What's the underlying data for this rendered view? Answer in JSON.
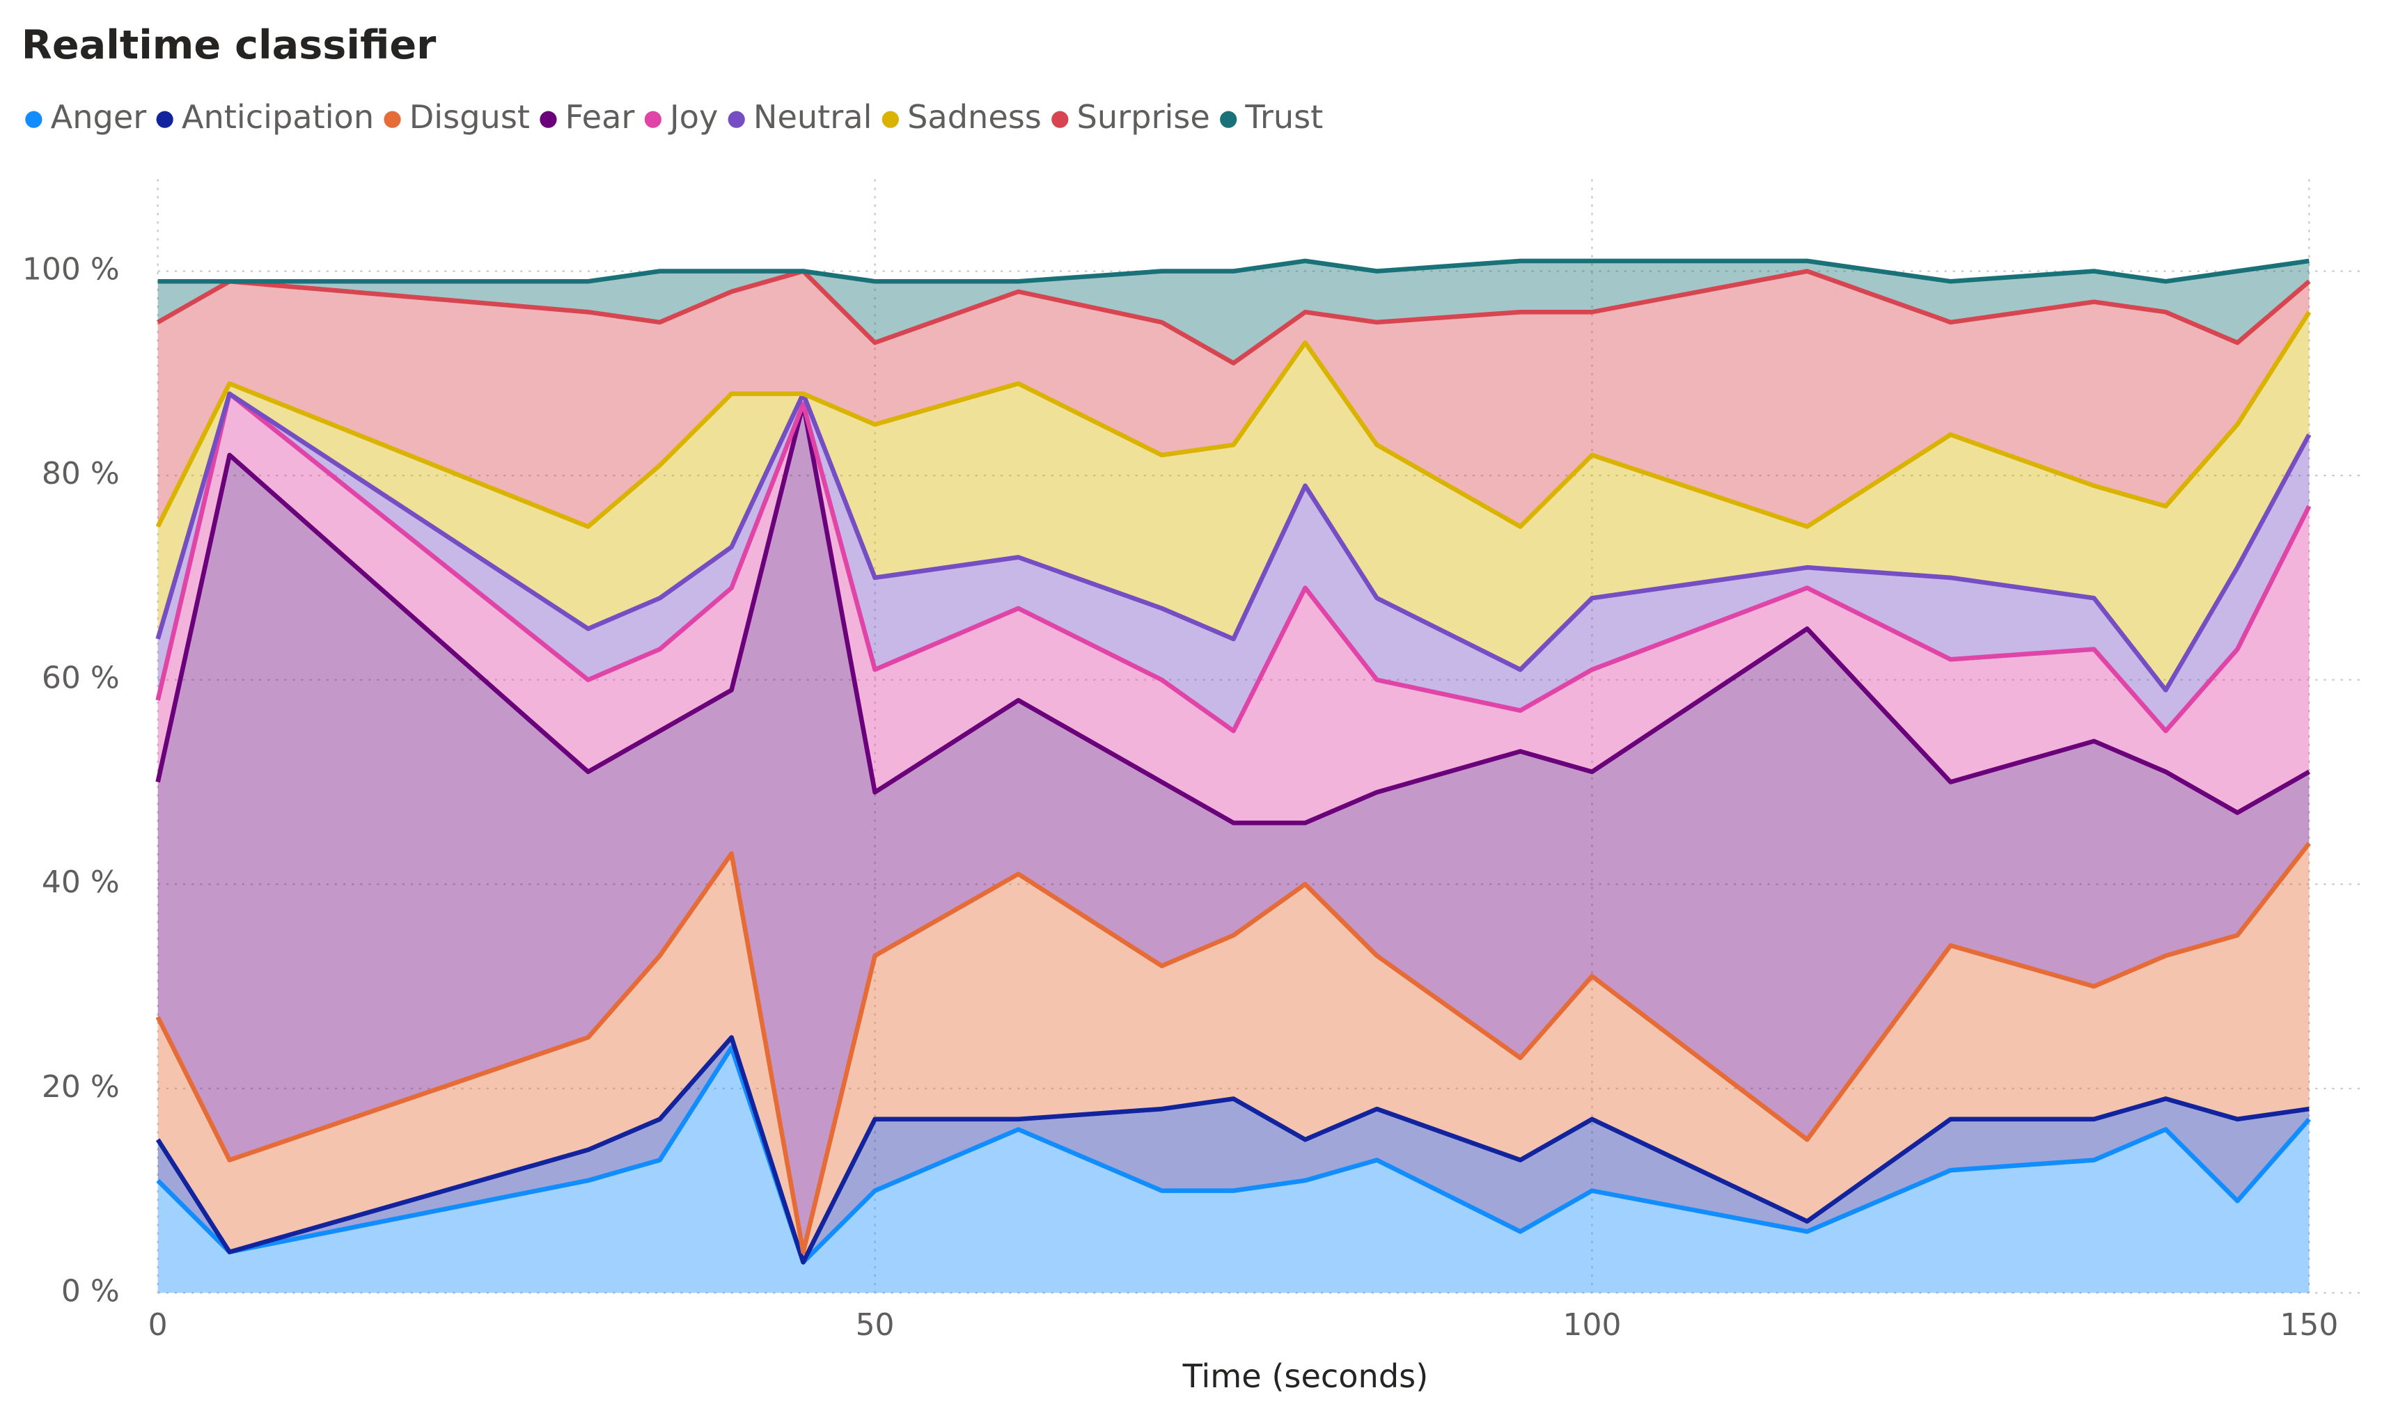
{
  "chart_data": {
    "type": "stacked-area",
    "title": "Realtime classifier",
    "x_label": "Time (seconds)",
    "x": [
      0,
      5,
      30,
      35,
      40,
      45,
      50,
      60,
      70,
      75,
      80,
      85,
      95,
      100,
      115,
      125,
      135,
      140,
      145,
      150
    ],
    "xlim": [
      0,
      150
    ],
    "xticks": [
      0,
      50,
      100,
      150
    ],
    "ylim": [
      0,
      109
    ],
    "yticks": [
      {
        "value": 0,
        "label": "0 %"
      },
      {
        "value": 20,
        "label": "20 %"
      },
      {
        "value": 40,
        "label": "40 %"
      },
      {
        "value": 60,
        "label": "60 %"
      },
      {
        "value": 80,
        "label": "80 %"
      },
      {
        "value": 100,
        "label": "100 %"
      }
    ],
    "grid": true,
    "series": [
      {
        "name": "Anger",
        "color": "#118DFF",
        "values": [
          11,
          4,
          11,
          13,
          24,
          3,
          10,
          16,
          10,
          10,
          11,
          13,
          6,
          10,
          6,
          12,
          13,
          16,
          9,
          17
        ]
      },
      {
        "name": "Anticipation",
        "color": "#12239E",
        "values": [
          4,
          0,
          3,
          4,
          1,
          0,
          7,
          1,
          8,
          9,
          4,
          5,
          7,
          7,
          1,
          5,
          4,
          3,
          8,
          1
        ]
      },
      {
        "name": "Disgust",
        "color": "#E66C37",
        "values": [
          12,
          9,
          11,
          16,
          18,
          1,
          16,
          24,
          14,
          16,
          25,
          15,
          10,
          14,
          8,
          17,
          13,
          14,
          18,
          26
        ]
      },
      {
        "name": "Fear",
        "color": "#6B007B",
        "values": [
          23,
          69,
          26,
          22,
          16,
          83,
          16,
          17,
          18,
          11,
          6,
          16,
          30,
          20,
          50,
          16,
          24,
          18,
          12,
          7
        ]
      },
      {
        "name": "Joy",
        "color": "#E044A7",
        "values": [
          8,
          6,
          9,
          8,
          10,
          0,
          12,
          9,
          10,
          9,
          23,
          11,
          4,
          10,
          4,
          12,
          9,
          4,
          16,
          26
        ]
      },
      {
        "name": "Neutral",
        "color": "#744EC2",
        "values": [
          6,
          0,
          5,
          5,
          4,
          1,
          9,
          5,
          7,
          9,
          10,
          8,
          4,
          7,
          2,
          8,
          5,
          4,
          8,
          7
        ]
      },
      {
        "name": "Sadness",
        "color": "#D9B300",
        "values": [
          11,
          1,
          10,
          13,
          15,
          0,
          15,
          17,
          15,
          19,
          14,
          15,
          14,
          14,
          4,
          14,
          11,
          18,
          14,
          12
        ]
      },
      {
        "name": "Surprise",
        "color": "#D64550",
        "values": [
          20,
          10,
          21,
          14,
          10,
          12,
          8,
          9,
          13,
          8,
          3,
          12,
          21,
          14,
          25,
          11,
          18,
          19,
          8,
          3
        ]
      },
      {
        "name": "Trust",
        "color": "#197278",
        "values": [
          4,
          0,
          3,
          5,
          2,
          0,
          6,
          1,
          5,
          9,
          5,
          5,
          5,
          5,
          1,
          4,
          3,
          3,
          7,
          2
        ]
      }
    ]
  }
}
